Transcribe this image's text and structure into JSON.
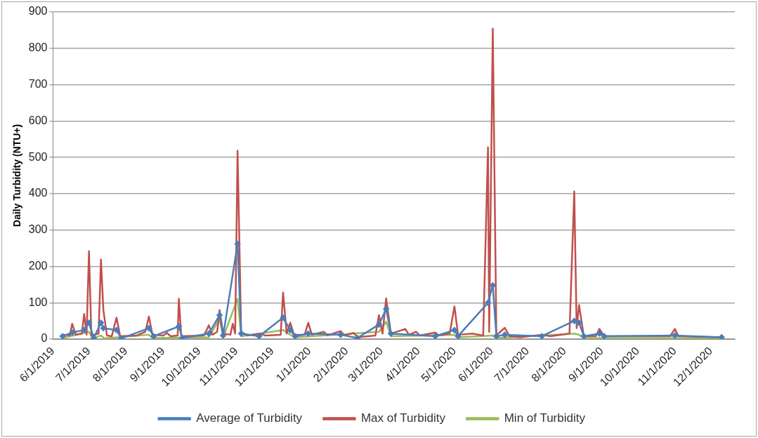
{
  "chart_data": {
    "type": "line",
    "ylabel": "Daily Turbidity (NTU+)",
    "xlim": [
      "2019-06-01",
      "2020-12-21"
    ],
    "xticks": [
      {
        "value": "2019-06-01",
        "label": "6/1/2019"
      },
      {
        "value": "2019-07-01",
        "label": "7/1/2019"
      },
      {
        "value": "2019-08-01",
        "label": "8/1/2019"
      },
      {
        "value": "2019-09-01",
        "label": "9/1/2019"
      },
      {
        "value": "2019-10-01",
        "label": "10/1/2019"
      },
      {
        "value": "2019-11-01",
        "label": "11/1/2019"
      },
      {
        "value": "2019-12-01",
        "label": "12/1/2019"
      },
      {
        "value": "2020-01-01",
        "label": "1/1/2020"
      },
      {
        "value": "2020-02-01",
        "label": "2/1/2020"
      },
      {
        "value": "2020-03-01",
        "label": "3/1/2020"
      },
      {
        "value": "2020-04-01",
        "label": "4/1/2020"
      },
      {
        "value": "2020-05-01",
        "label": "5/1/2020"
      },
      {
        "value": "2020-06-01",
        "label": "6/1/2020"
      },
      {
        "value": "2020-07-01",
        "label": "7/1/2020"
      },
      {
        "value": "2020-08-01",
        "label": "8/1/2020"
      },
      {
        "value": "2020-09-01",
        "label": "9/1/2020"
      },
      {
        "value": "2020-10-01",
        "label": "10/1/2020"
      },
      {
        "value": "2020-11-01",
        "label": "11/1/2020"
      },
      {
        "value": "2020-12-01",
        "label": "12/1/2020"
      }
    ],
    "ylim": [
      0,
      900
    ],
    "yticks": [
      0,
      100,
      200,
      300,
      400,
      500,
      600,
      700,
      800,
      900
    ],
    "grid": "y",
    "legend": "bottom",
    "series": [
      {
        "name": "Average of Turbidity",
        "color": "#4a7ebb",
        "marker": "diamond",
        "x": [
          "2019-06-09",
          "2019-06-17",
          "2019-06-27",
          "2019-07-01",
          "2019-07-05",
          "2019-07-11",
          "2019-07-13",
          "2019-07-24",
          "2019-07-28",
          "2019-08-20",
          "2019-08-24",
          "2019-09-14",
          "2019-09-17",
          "2019-10-09",
          "2019-10-18",
          "2019-10-21",
          "2019-11-02",
          "2019-11-05",
          "2019-11-20",
          "2019-12-10",
          "2019-12-16",
          "2019-12-20",
          "2019-12-31",
          "2020-01-27",
          "2020-02-10",
          "2020-02-28",
          "2020-03-05",
          "2020-03-09",
          "2020-04-15",
          "2020-05-01",
          "2020-05-04",
          "2020-05-29",
          "2020-06-02",
          "2020-06-05",
          "2020-06-12",
          "2020-07-13",
          "2020-08-09",
          "2020-08-13",
          "2020-08-17",
          "2020-08-30",
          "2020-09-03",
          "2020-11-01",
          "2020-12-10"
        ],
        "values": [
          8,
          18,
          25,
          45,
          3,
          45,
          30,
          25,
          2,
          30,
          8,
          35,
          3,
          15,
          66,
          10,
          262,
          15,
          8,
          59,
          25,
          8,
          15,
          12,
          3,
          40,
          83,
          15,
          8,
          25,
          8,
          100,
          148,
          8,
          12,
          8,
          50,
          45,
          8,
          15,
          8,
          10,
          5
        ]
      },
      {
        "name": "Max of Turbidity",
        "color": "#c0504d",
        "marker": "none",
        "x": [
          "2019-06-09",
          "2019-06-11",
          "2019-06-15",
          "2019-06-17",
          "2019-06-20",
          "2019-06-25",
          "2019-06-27",
          "2019-06-29",
          "2019-07-01",
          "2019-07-03",
          "2019-07-09",
          "2019-07-11",
          "2019-07-13",
          "2019-07-16",
          "2019-07-20",
          "2019-07-24",
          "2019-07-27",
          "2019-08-10",
          "2019-08-17",
          "2019-08-20",
          "2019-08-23",
          "2019-09-01",
          "2019-09-04",
          "2019-09-07",
          "2019-09-13",
          "2019-09-14",
          "2019-09-16",
          "2019-10-05",
          "2019-10-09",
          "2019-10-12",
          "2019-10-16",
          "2019-10-18",
          "2019-10-21",
          "2019-10-27",
          "2019-10-29",
          "2019-10-31",
          "2019-11-02",
          "2019-11-05",
          "2019-11-10",
          "2019-11-21",
          "2019-11-25",
          "2019-12-08",
          "2019-12-10",
          "2019-12-13",
          "2019-12-16",
          "2019-12-19",
          "2019-12-28",
          "2019-12-31",
          "2020-01-03",
          "2020-01-13",
          "2020-01-16",
          "2020-01-27",
          "2020-01-30",
          "2020-02-07",
          "2020-02-10",
          "2020-02-25",
          "2020-02-28",
          "2020-03-02",
          "2020-03-05",
          "2020-03-09",
          "2020-03-21",
          "2020-03-24",
          "2020-03-30",
          "2020-04-02",
          "2020-04-15",
          "2020-04-18",
          "2020-04-27",
          "2020-05-01",
          "2020-05-04",
          "2020-05-16",
          "2020-05-25",
          "2020-05-29",
          "2020-05-30",
          "2020-06-02",
          "2020-06-05",
          "2020-06-12",
          "2020-06-16",
          "2020-06-25",
          "2020-07-13",
          "2020-07-20",
          "2020-08-05",
          "2020-08-09",
          "2020-08-11",
          "2020-08-13",
          "2020-08-17",
          "2020-08-27",
          "2020-08-30",
          "2020-09-03",
          "2020-10-28",
          "2020-11-01",
          "2020-11-04",
          "2020-12-10"
        ],
        "values": [
          8,
          12,
          10,
          42,
          12,
          15,
          69,
          12,
          242,
          10,
          15,
          219,
          80,
          10,
          8,
          59,
          8,
          10,
          20,
          62,
          12,
          10,
          17,
          8,
          10,
          111,
          8,
          10,
          38,
          12,
          20,
          80,
          15,
          12,
          42,
          15,
          518,
          20,
          10,
          15,
          10,
          12,
          128,
          15,
          45,
          12,
          12,
          45,
          12,
          20,
          10,
          22,
          10,
          17,
          5,
          10,
          66,
          15,
          112,
          15,
          28,
          12,
          20,
          10,
          18,
          10,
          15,
          90,
          12,
          15,
          10,
          528,
          20,
          854,
          10,
          31,
          8,
          5,
          12,
          8,
          15,
          406,
          30,
          94,
          8,
          8,
          28,
          8,
          8,
          28,
          8,
          5
        ]
      },
      {
        "name": "Min of Turbidity",
        "color": "#9bbb59",
        "marker": "none",
        "x": [
          "2019-06-09",
          "2019-07-01",
          "2019-07-04",
          "2019-07-11",
          "2019-07-14",
          "2019-08-20",
          "2019-08-23",
          "2019-10-09",
          "2019-10-18",
          "2019-10-21",
          "2019-11-02",
          "2019-11-05",
          "2019-12-10",
          "2019-12-16",
          "2019-12-20",
          "2020-02-28",
          "2020-03-05",
          "2020-03-09",
          "2020-05-01",
          "2020-05-04",
          "2020-06-02",
          "2020-06-05",
          "2020-08-09",
          "2020-08-13",
          "2020-08-17",
          "2020-12-10"
        ],
        "values": [
          3,
          20,
          2,
          10,
          2,
          12,
          3,
          5,
          56,
          5,
          111,
          8,
          25,
          12,
          5,
          20,
          48,
          8,
          12,
          5,
          10,
          3,
          15,
          12,
          3,
          2
        ]
      }
    ]
  }
}
